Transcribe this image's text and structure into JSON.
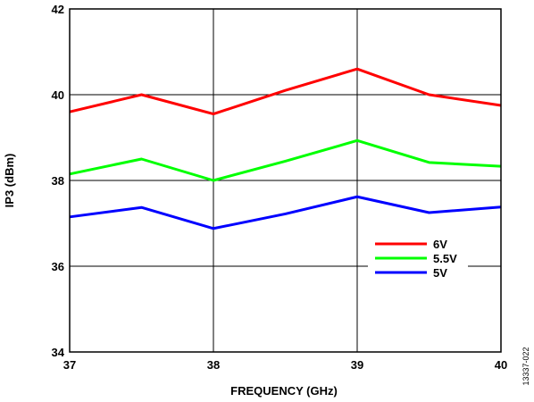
{
  "figure_id": "13337-022",
  "chart_data": {
    "type": "line",
    "xlabel": "FREQUENCY (GHz)",
    "ylabel": "IP3 (dBm)",
    "xlim": [
      37,
      40
    ],
    "ylim": [
      34,
      42
    ],
    "xticks": [
      "37",
      "38",
      "39",
      "40"
    ],
    "yticks": [
      "34",
      "36",
      "38",
      "40",
      "42"
    ],
    "x": [
      37,
      37.5,
      38,
      38.5,
      39,
      39.5,
      40
    ],
    "grid": true,
    "legend_position": "right",
    "series": [
      {
        "name": "6V",
        "color": "#ff0000",
        "values": [
          39.6,
          40.0,
          39.55,
          40.1,
          40.6,
          40.0,
          39.75
        ]
      },
      {
        "name": "5.5V",
        "color": "#00ff00",
        "values": [
          38.15,
          38.5,
          38.0,
          38.45,
          38.93,
          38.42,
          38.33
        ]
      },
      {
        "name": "5V",
        "color": "#0000ff",
        "values": [
          37.15,
          37.37,
          36.88,
          37.22,
          37.62,
          37.25,
          37.38
        ]
      }
    ]
  }
}
